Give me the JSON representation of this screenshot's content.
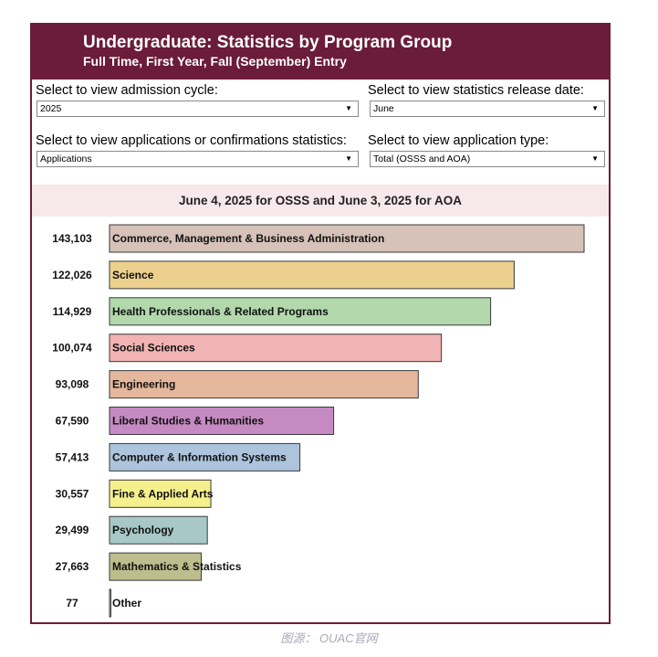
{
  "header": {
    "title": "Undergraduate: Statistics by Program Group",
    "subtitle": "Full Time, First Year, Fall (September) Entry"
  },
  "controls": {
    "cycle": {
      "label": "Select to view admission cycle:",
      "value": "2025"
    },
    "release": {
      "label": "Select to view statistics release date:",
      "value": "June"
    },
    "stat_type": {
      "label": "Select to view applications or confirmations statistics:",
      "value": "Applications"
    },
    "app_type": {
      "label": "Select to view application type:",
      "value": "Total (OSSS and AOA)"
    }
  },
  "date_note": "June 4, 2025 for OSSS and June 3, 2025 for AOA",
  "source": "图源： OUAC官网",
  "chart_data": {
    "type": "bar",
    "orientation": "horizontal",
    "title": "",
    "xlabel": "",
    "ylabel": "",
    "grid": false,
    "legend": "none",
    "categories": [
      "Commerce, Management & Business Administration",
      "Science",
      "Health Professionals & Related Programs",
      "Social Sciences",
      "Engineering",
      "Liberal Studies & Humanities",
      "Computer & Information Systems",
      "Fine & Applied Arts",
      "Psychology",
      "Mathematics & Statistics",
      "Other"
    ],
    "values": [
      143103,
      122026,
      114929,
      100074,
      93098,
      67590,
      57413,
      30557,
      29499,
      27663,
      77
    ],
    "value_labels": [
      "143,103",
      "122,026",
      "114,929",
      "100,074",
      "93,098",
      "67,590",
      "57,413",
      "30,557",
      "29,499",
      "27,663",
      "77"
    ],
    "colors": [
      "#d6c2b8",
      "#ecd08e",
      "#b2d8ac",
      "#f1b3b3",
      "#e5b79c",
      "#c58ac2",
      "#acc4dc",
      "#f5f08c",
      "#a7c8c7",
      "#bebd8d",
      "#cccccc"
    ]
  }
}
